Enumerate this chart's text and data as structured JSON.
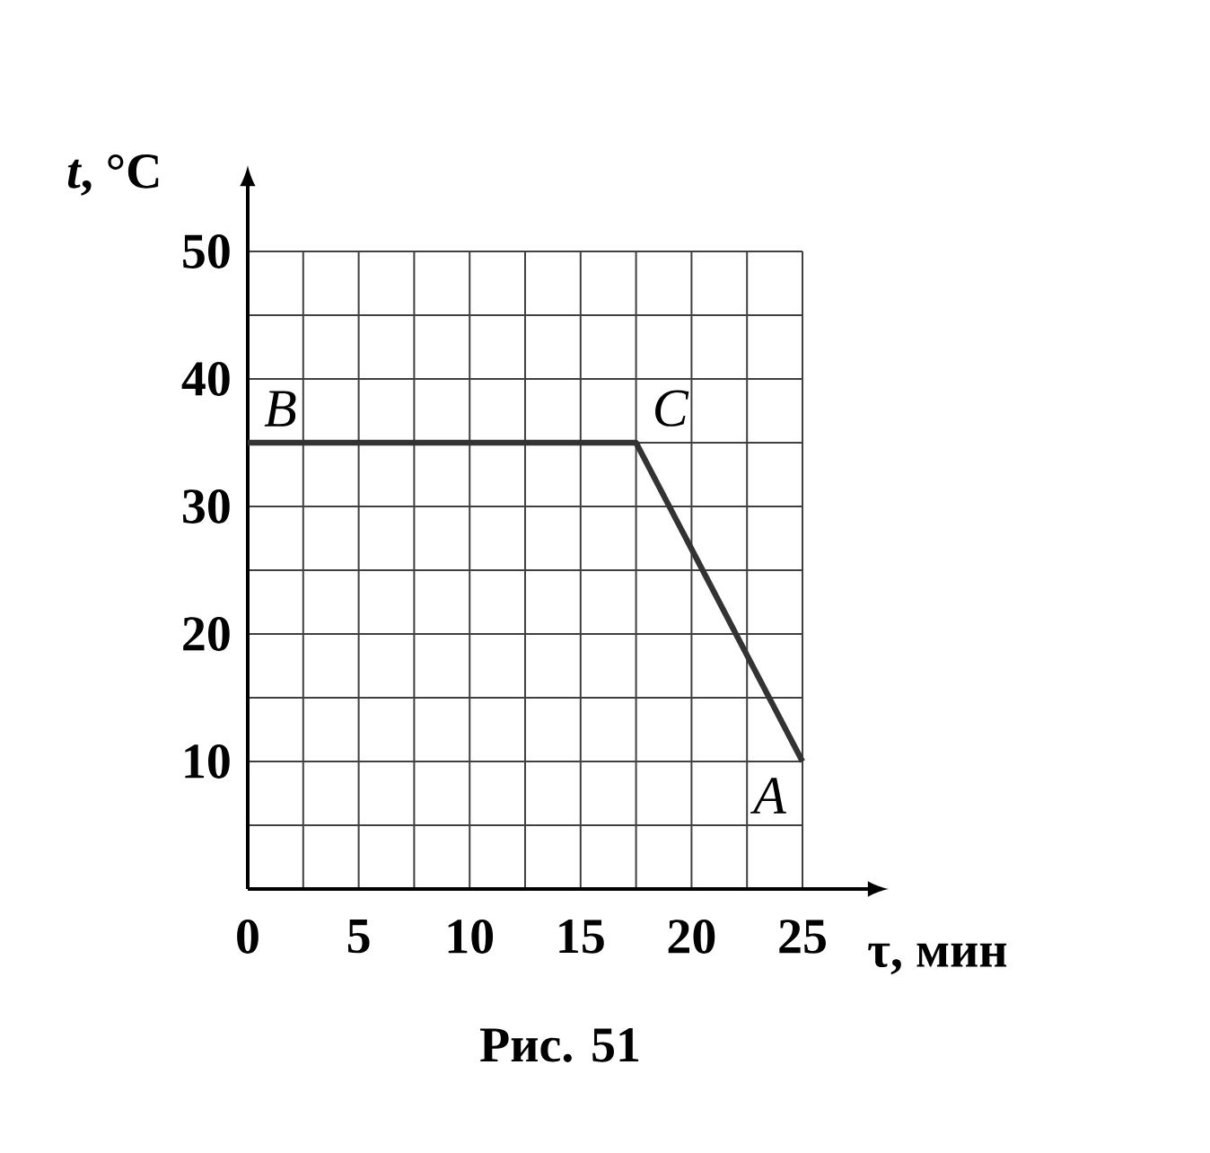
{
  "chart_data": {
    "type": "line",
    "x": [
      0,
      17.5,
      25
    ],
    "values": [
      35,
      35,
      10
    ],
    "color": "#333333",
    "xlabel": "τ, мин",
    "ylabel": "*t*, °C",
    "xlim": [
      0,
      25
    ],
    "ylim": [
      0,
      50
    ],
    "xticks": [
      0,
      {
        "value": 2.5,
        "label": null
      },
      5,
      {
        "value": 7.5,
        "label": null
      },
      10,
      {
        "value": 12.5,
        "label": null
      },
      15,
      {
        "value": 17.5,
        "label": null
      },
      20,
      {
        "value": 22.5,
        "label": null
      },
      25
    ],
    "yticks": [
      {
        "value": 0,
        "label": null
      },
      {
        "value": 5,
        "label": null
      },
      10,
      {
        "value": 15,
        "label": null
      },
      20,
      {
        "value": 25,
        "label": null
      },
      30,
      {
        "value": 35,
        "label": null
      },
      40,
      {
        "value": 45,
        "label": null
      },
      50
    ],
    "grid": true,
    "marker": "none",
    "line_style": "solid",
    "annotations": [
      {
        "text": "B",
        "x": 0,
        "y": 35
      },
      {
        "text": "C",
        "x": 17.5,
        "y": 35
      },
      {
        "text": "A",
        "x": 25,
        "y": 10
      },
      "Рис. 51"
    ]
  }
}
